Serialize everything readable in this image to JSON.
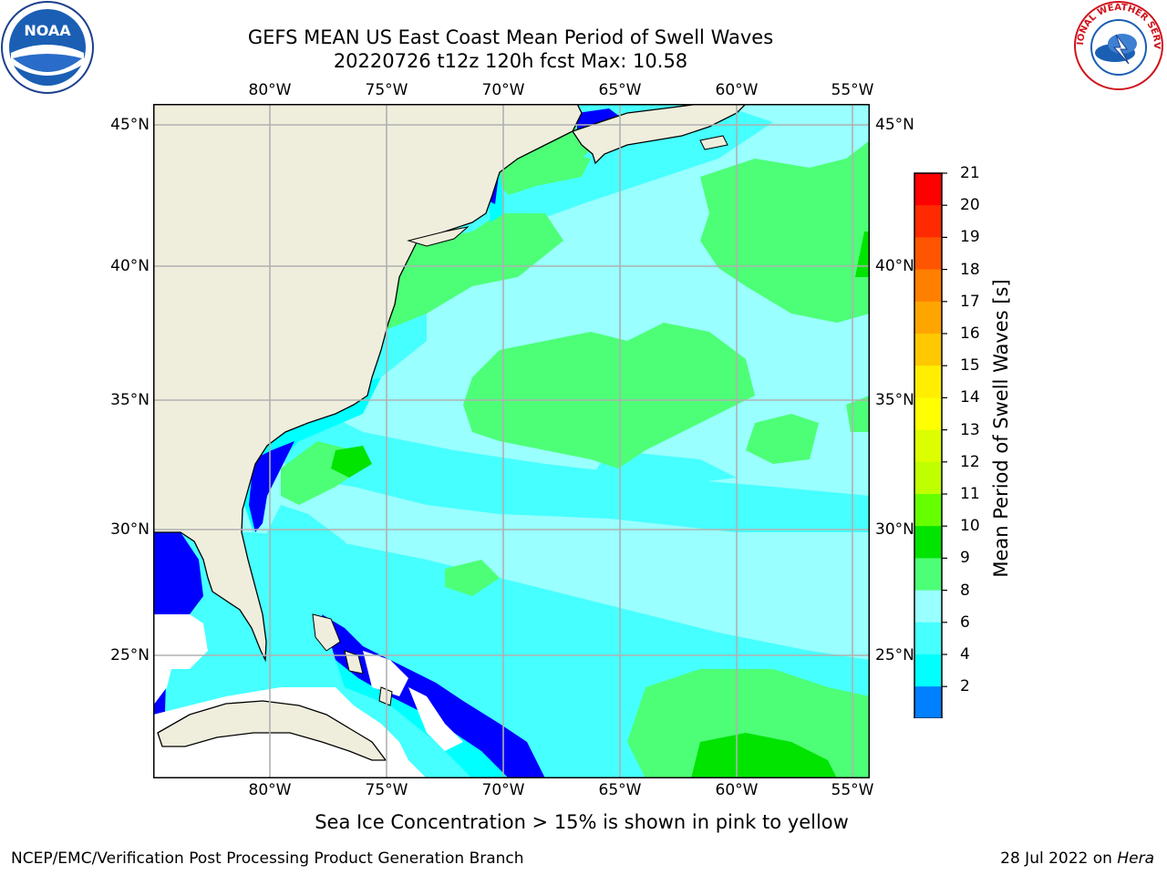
{
  "title": {
    "line1": "GEFS MEAN US East Coast Mean Period of Swell Waves",
    "line2": "20220726 t12z 120h fcst   Max: 10.58"
  },
  "map": {
    "lon_labels": [
      "80°W",
      "75°W",
      "70°W",
      "65°W",
      "60°W",
      "55°W"
    ],
    "lat_labels": [
      "45°N",
      "40°N",
      "35°N",
      "30°N",
      "25°N"
    ],
    "lon_range": [
      -85,
      -54
    ],
    "lat_range": [
      20.5,
      46
    ],
    "colors": {
      "land": "#efeedd",
      "lt4": "#0000ff",
      "b4_6": "#00ffff",
      "b6_8": "#46ffff",
      "b8_9": "#99ffff",
      "b9_10": "#4dff77",
      "b10_11": "#00e400"
    }
  },
  "colorbar": {
    "title": "Mean Period of Swell Waves [s]",
    "ticks": [
      "21",
      "20",
      "19",
      "18",
      "17",
      "16",
      "15",
      "14",
      "13",
      "12",
      "11",
      "10",
      "9",
      "8",
      "6",
      "4",
      "2"
    ],
    "colors": [
      "#ff0000",
      "#ff2a00",
      "#ff5500",
      "#ff7f00",
      "#ffa500",
      "#ffc800",
      "#ffee00",
      "#ffff00",
      "#dcff00",
      "#bfff00",
      "#66ff00",
      "#00e400",
      "#4dff77",
      "#99ffff",
      "#46ffff",
      "#00ffff",
      "#007fff"
    ],
    "under_color": "#0000ff"
  },
  "footer": {
    "note": "Sea Ice Concentration > 15% is shown in pink to yellow",
    "credit": "NCEP/EMC/Verification Post Processing Product Generation Branch",
    "date": "28 Jul 2022 on",
    "host": "Hera"
  },
  "logos": {
    "noaa_text": "NOAA",
    "nws_ring_text": "NATIONAL WEATHER SERVICE"
  }
}
